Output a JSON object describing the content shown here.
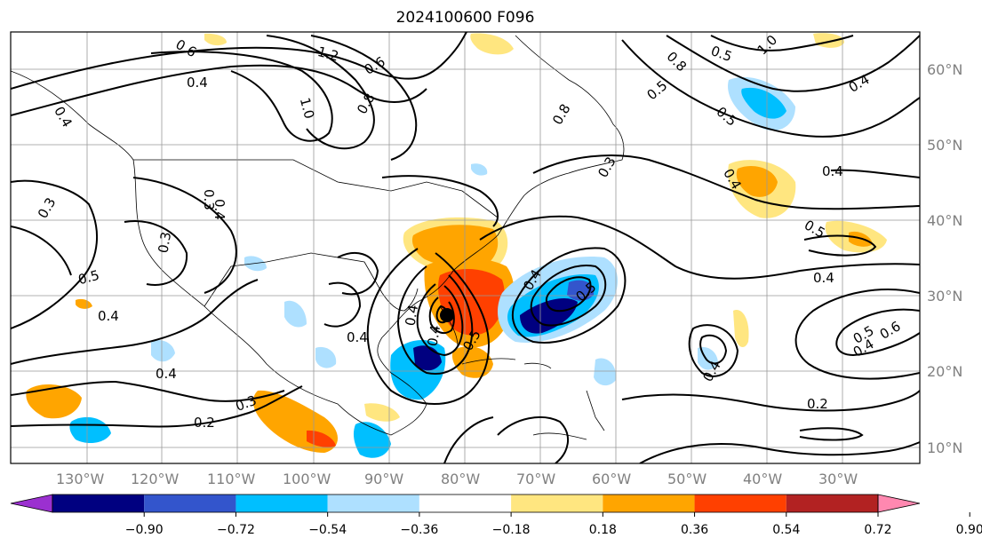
{
  "title": "2024100600 F096",
  "lon_labels": [
    "130°W",
    "120°W",
    "110°W",
    "100°W",
    "90°W",
    "80°W",
    "70°W",
    "60°W",
    "50°W",
    "40°W",
    "30°W"
  ],
  "lat_labels": [
    "60°N",
    "50°N",
    "40°N",
    "30°N",
    "20°N",
    "10°N"
  ],
  "colorbar": {
    "ticks": [
      "−0.90",
      "−0.72",
      "−0.54",
      "−0.36",
      "−0.18",
      "0.18",
      "0.36",
      "0.54",
      "0.72",
      "0.90"
    ],
    "colors": [
      "#9b30d0",
      "#000080",
      "#3355cc",
      "#00bfff",
      "#aee0ff",
      "#ffffff",
      "#ffe680",
      "#ffa500",
      "#ff4000",
      "#b22222",
      "#ff88b0"
    ]
  },
  "contour_labels": [
    "0.6",
    "1.2",
    "1.0",
    "0.8",
    "0.6",
    "0.8",
    "0.5",
    "0.8",
    "1.0",
    "0.4",
    "0.5",
    "0.4",
    "0.3",
    "0.3",
    "0.3",
    "0.4",
    "0.5",
    "0.4",
    "0.4",
    "0.2",
    "0.3",
    "0.4",
    "0.4",
    "0.5",
    "0.4",
    "0.6",
    "0.4",
    "0.5",
    "0.5",
    "0.4",
    "0.3",
    "0.4",
    "0.4",
    "0.5",
    "0.4",
    "0.2",
    "0.4",
    "0.5",
    "0.4"
  ],
  "storm_marker": "black-dot"
}
